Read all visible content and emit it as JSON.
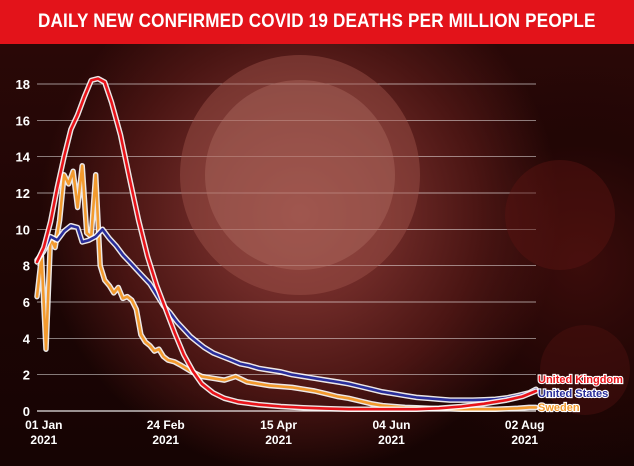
{
  "header": {
    "title": "DAILY NEW CONFIRMED COVID 19 DEATHS PER MILLION PEOPLE"
  },
  "chart_data": {
    "type": "line",
    "title": "DAILY NEW CONFIRMED COVID 19 DEATHS PER MILLION PEOPLE",
    "ylim": [
      0,
      18
    ],
    "y_ticks": [
      0,
      2,
      4,
      6,
      8,
      10,
      12,
      14,
      16,
      18
    ],
    "x_ticks": [
      {
        "day": 0,
        "line1": "01 Jan",
        "line2": "2021"
      },
      {
        "day": 54,
        "line1": "24 Feb",
        "line2": "2021"
      },
      {
        "day": 104,
        "line1": "15 Apr",
        "line2": "2021"
      },
      {
        "day": 154,
        "line1": "04 Jun",
        "line2": "2021"
      },
      {
        "day": 213,
        "line1": "02 Aug",
        "line2": "2021"
      }
    ],
    "grid": true,
    "legend_position": "bottom-right",
    "series": [
      {
        "name": "United Kingdom",
        "color": "#e8141b",
        "points": [
          [
            -3,
            8.2
          ],
          [
            0,
            9
          ],
          [
            3,
            10.4
          ],
          [
            6,
            12.3
          ],
          [
            9,
            14
          ],
          [
            12,
            15.5
          ],
          [
            15,
            16.3
          ],
          [
            18,
            17.3
          ],
          [
            21,
            18.2
          ],
          [
            24,
            18.3
          ],
          [
            27,
            18.1
          ],
          [
            30,
            17
          ],
          [
            34,
            15.2
          ],
          [
            38,
            12.8
          ],
          [
            42,
            10.5
          ],
          [
            46,
            8.5
          ],
          [
            50,
            6.9
          ],
          [
            54,
            5.6
          ],
          [
            58,
            4.3
          ],
          [
            62,
            3.1
          ],
          [
            66,
            2.2
          ],
          [
            70,
            1.5
          ],
          [
            75,
            1
          ],
          [
            80,
            0.7
          ],
          [
            86,
            0.5
          ],
          [
            95,
            0.35
          ],
          [
            105,
            0.25
          ],
          [
            115,
            0.18
          ],
          [
            125,
            0.13
          ],
          [
            135,
            0.1
          ],
          [
            145,
            0.1
          ],
          [
            155,
            0.1
          ],
          [
            165,
            0.1
          ],
          [
            175,
            0.15
          ],
          [
            185,
            0.25
          ],
          [
            195,
            0.4
          ],
          [
            205,
            0.6
          ],
          [
            212,
            0.8
          ],
          [
            218,
            1.1
          ]
        ]
      },
      {
        "name": "United States",
        "color": "#2a2e9a",
        "points": [
          [
            -3,
            8.3
          ],
          [
            0,
            8.8
          ],
          [
            3,
            9.6
          ],
          [
            6,
            9.4
          ],
          [
            9,
            9.9
          ],
          [
            12,
            10.2
          ],
          [
            15,
            10.1
          ],
          [
            17,
            9.3
          ],
          [
            20,
            9.4
          ],
          [
            23,
            9.6
          ],
          [
            26,
            10
          ],
          [
            29,
            9.5
          ],
          [
            32,
            9.1
          ],
          [
            35,
            8.6
          ],
          [
            38,
            8.2
          ],
          [
            41,
            7.8
          ],
          [
            44,
            7.4
          ],
          [
            47,
            7
          ],
          [
            50,
            6.4
          ],
          [
            53,
            5.8
          ],
          [
            56,
            5.4
          ],
          [
            59,
            4.9
          ],
          [
            62,
            4.5
          ],
          [
            65,
            4.1
          ],
          [
            68,
            3.8
          ],
          [
            71,
            3.5
          ],
          [
            75,
            3.2
          ],
          [
            79,
            3
          ],
          [
            83,
            2.8
          ],
          [
            87,
            2.6
          ],
          [
            91,
            2.5
          ],
          [
            95,
            2.35
          ],
          [
            100,
            2.25
          ],
          [
            105,
            2.15
          ],
          [
            110,
            2
          ],
          [
            115,
            1.9
          ],
          [
            120,
            1.8
          ],
          [
            125,
            1.7
          ],
          [
            130,
            1.6
          ],
          [
            135,
            1.5
          ],
          [
            140,
            1.35
          ],
          [
            145,
            1.2
          ],
          [
            150,
            1.05
          ],
          [
            155,
            0.95
          ],
          [
            160,
            0.85
          ],
          [
            165,
            0.75
          ],
          [
            170,
            0.7
          ],
          [
            175,
            0.65
          ],
          [
            180,
            0.6
          ],
          [
            185,
            0.6
          ],
          [
            190,
            0.6
          ],
          [
            195,
            0.62
          ],
          [
            200,
            0.65
          ],
          [
            205,
            0.72
          ],
          [
            210,
            0.85
          ],
          [
            215,
            1
          ],
          [
            218,
            1.2
          ]
        ]
      },
      {
        "name": "Sweden",
        "color": "#f29a2e",
        "points": [
          [
            -3,
            6.3
          ],
          [
            -1,
            8.5
          ],
          [
            1,
            3.4
          ],
          [
            3,
            9.5
          ],
          [
            5,
            9
          ],
          [
            7,
            10.5
          ],
          [
            9,
            13
          ],
          [
            11,
            12.5
          ],
          [
            13,
            13.2
          ],
          [
            15,
            11.2
          ],
          [
            17,
            13.5
          ],
          [
            19,
            9.8
          ],
          [
            21,
            9.6
          ],
          [
            23,
            13
          ],
          [
            25,
            8
          ],
          [
            27,
            7.2
          ],
          [
            29,
            6.9
          ],
          [
            31,
            6.5
          ],
          [
            33,
            6.8
          ],
          [
            35,
            6.2
          ],
          [
            37,
            6.3
          ],
          [
            39,
            6.1
          ],
          [
            41,
            5.6
          ],
          [
            43,
            4.2
          ],
          [
            45,
            3.8
          ],
          [
            47,
            3.6
          ],
          [
            49,
            3.3
          ],
          [
            51,
            3.4
          ],
          [
            53,
            3
          ],
          [
            55,
            2.8
          ],
          [
            58,
            2.7
          ],
          [
            61,
            2.5
          ],
          [
            65,
            2.2
          ],
          [
            70,
            1.9
          ],
          [
            75,
            1.8
          ],
          [
            80,
            1.7
          ],
          [
            85,
            1.9
          ],
          [
            90,
            1.6
          ],
          [
            95,
            1.5
          ],
          [
            100,
            1.4
          ],
          [
            105,
            1.35
          ],
          [
            110,
            1.3
          ],
          [
            115,
            1.2
          ],
          [
            120,
            1.1
          ],
          [
            125,
            0.95
          ],
          [
            130,
            0.8
          ],
          [
            135,
            0.7
          ],
          [
            140,
            0.55
          ],
          [
            145,
            0.4
          ],
          [
            150,
            0.3
          ],
          [
            155,
            0.25
          ],
          [
            160,
            0.2
          ],
          [
            165,
            0.18
          ],
          [
            170,
            0.15
          ],
          [
            175,
            0.12
          ],
          [
            180,
            0.12
          ],
          [
            185,
            0.1
          ],
          [
            190,
            0.1
          ],
          [
            195,
            0.1
          ],
          [
            200,
            0.1
          ],
          [
            205,
            0.12
          ],
          [
            210,
            0.15
          ],
          [
            215,
            0.2
          ],
          [
            218,
            0.2
          ]
        ]
      }
    ]
  }
}
